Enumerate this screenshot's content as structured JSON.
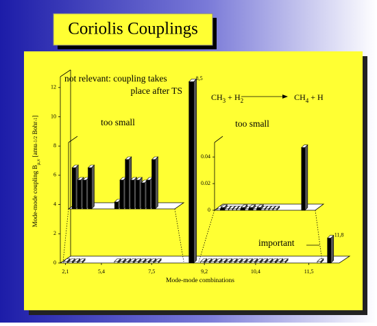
{
  "title": "Coriolis Couplings",
  "equation": [
    {
      "text": "CH"
    },
    {
      "text": "3",
      "shift": "sub"
    },
    {
      "text": " + H"
    },
    {
      "text": "2",
      "shift": "sub"
    },
    {
      "text": "CH"
    },
    {
      "text": "4",
      "shift": "sub"
    },
    {
      "text": " + H"
    }
  ],
  "chart_data": [
    {
      "type": "bar",
      "xlabel": "Mode-mode combinations",
      "ylabel": [
        {
          "text": "Mode-mode coupling B"
        },
        {
          "text": "μ,ν",
          "shift": "sub"
        },
        {
          "text": "  [amu"
        },
        {
          "text": "-1/2",
          "shift": "sup"
        },
        {
          "text": " Bohr"
        },
        {
          "text": "-1",
          "shift": "sup"
        },
        {
          "text": "]"
        }
      ],
      "annotations": [
        "not relevant: coupling takes",
        "place after TS",
        "important"
      ],
      "x": [
        1,
        2,
        3,
        4,
        11,
        12,
        13,
        14,
        15,
        16,
        17,
        18,
        19,
        25.7,
        28,
        29,
        30,
        31,
        32,
        33,
        34,
        35,
        36,
        37,
        38,
        39,
        40,
        41,
        42,
        43,
        44,
        51,
        53
      ],
      "values": [
        0.1,
        0.1,
        0.1,
        0.1,
        0.1,
        0.1,
        0.1,
        0.1,
        0.1,
        0.1,
        0.1,
        0.1,
        0.1,
        12.4,
        0.1,
        0.1,
        0.1,
        0.1,
        0.1,
        0.1,
        0.1,
        0.1,
        0.1,
        0.1,
        0.1,
        0.1,
        0.1,
        0.1,
        0.1,
        0.1,
        0.1,
        0.1,
        1.7
      ],
      "labels": [
        null,
        null,
        null,
        null,
        null,
        null,
        null,
        null,
        null,
        null,
        null,
        null,
        null,
        "8,5",
        null,
        null,
        null,
        null,
        null,
        null,
        null,
        null,
        null,
        null,
        null,
        null,
        null,
        null,
        null,
        null,
        null,
        null,
        "11,8"
      ],
      "color": "#000000",
      "xlim": [
        0,
        55
      ],
      "xticks": [
        {
          "value": 1,
          "label": "2,1"
        },
        {
          "value": 8.1,
          "label": "5,4"
        },
        {
          "value": 18,
          "label": "7,5"
        },
        {
          "value": 28.4,
          "label": "9,2"
        },
        {
          "value": 38.5,
          "label": "10,4"
        },
        {
          "value": 49,
          "label": "11,5"
        }
      ],
      "ylim": [
        0,
        12.6
      ],
      "yticks": [
        0,
        2,
        4,
        6,
        8,
        10,
        12
      ]
    },
    {
      "type": "bar",
      "title": "too small",
      "x": [
        1,
        2,
        3,
        4,
        9,
        10,
        11,
        12,
        13,
        14,
        15,
        16
      ],
      "values": [
        6,
        4.2,
        4.2,
        6,
        1,
        4.2,
        7.2,
        4.2,
        4.2,
        3.8,
        4.2,
        7.2
      ],
      "color": "#000000",
      "xlim": [
        0,
        20
      ],
      "ylim": [
        0,
        10
      ]
    },
    {
      "type": "bar",
      "title": "too small",
      "x": [
        28,
        29,
        30,
        31,
        32,
        33,
        34,
        35,
        36,
        37,
        38,
        39,
        40,
        41,
        42,
        49
      ],
      "values": [
        0.001,
        0.002,
        0.001,
        0.001,
        0.001,
        0.001,
        0.002,
        0.001,
        0.002,
        0.001,
        0.002,
        0.001,
        0.001,
        0.001,
        0.001,
        0.047
      ],
      "color": "#000000",
      "xlim": [
        27,
        52
      ],
      "ylim": [
        0,
        0.055
      ],
      "yticks": [
        0,
        0.02,
        0.04
      ]
    }
  ]
}
